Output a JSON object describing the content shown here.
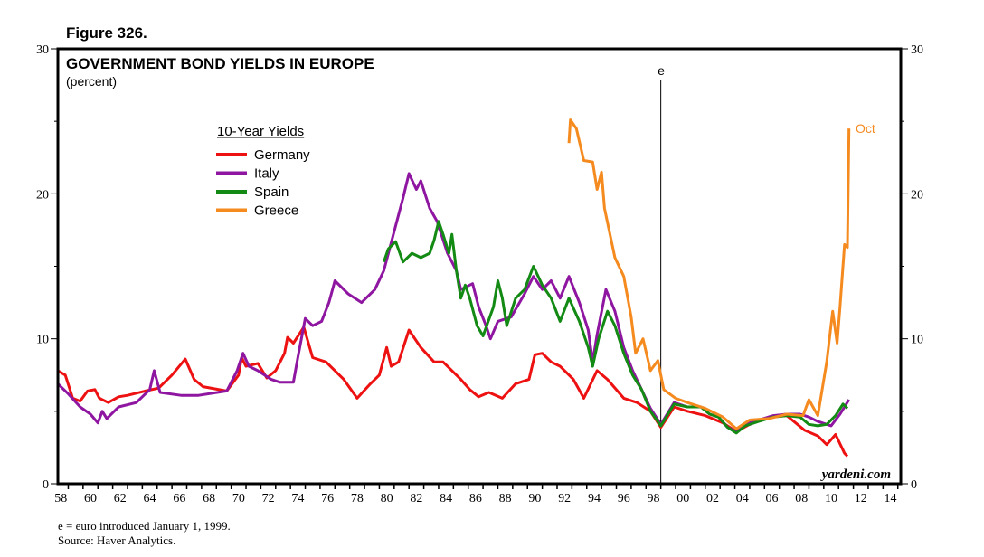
{
  "figure_label": "Figure 326.",
  "chart_data": {
    "type": "line",
    "title": "GOVERNMENT BOND YIELDS IN EUROPE",
    "subtitle": "(percent)",
    "legend_title": "10-Year Yields",
    "legend_placement": "top-left",
    "ylim": [
      0,
      30
    ],
    "yticks": [
      0,
      10,
      20,
      30
    ],
    "xlim": [
      1958.3,
      2015.2
    ],
    "xtick_labels": [
      "58",
      "60",
      "62",
      "64",
      "66",
      "68",
      "70",
      "72",
      "74",
      "76",
      "78",
      "80",
      "82",
      "84",
      "86",
      "88",
      "90",
      "92",
      "94",
      "96",
      "98",
      "00",
      "02",
      "04",
      "06",
      "08",
      "10",
      "12",
      "14"
    ],
    "xtick_years": [
      1958,
      1960,
      1962,
      1964,
      1966,
      1968,
      1970,
      1972,
      1974,
      1976,
      1978,
      1980,
      1982,
      1984,
      1986,
      1988,
      1990,
      1992,
      1994,
      1996,
      1998,
      2000,
      2002,
      2004,
      2006,
      2008,
      2010,
      2012,
      2014
    ],
    "grid": false,
    "annotations": {
      "euro_marker": {
        "label": "e",
        "year": 1999.0
      },
      "greece_end_label": "Oct",
      "watermark": "yardeni.com"
    },
    "series": [
      {
        "name": "Germany",
        "color": "#ee1111",
        "points": [
          [
            1958.3,
            7.8
          ],
          [
            1958.8,
            7.5
          ],
          [
            1959.3,
            5.9
          ],
          [
            1959.8,
            5.7
          ],
          [
            1960.3,
            6.4
          ],
          [
            1960.8,
            6.5
          ],
          [
            1961.1,
            5.9
          ],
          [
            1961.7,
            5.6
          ],
          [
            1962.4,
            6.0
          ],
          [
            1963.0,
            6.1
          ],
          [
            1964.2,
            6.4
          ],
          [
            1965.1,
            6.6
          ],
          [
            1966.0,
            7.5
          ],
          [
            1966.9,
            8.6
          ],
          [
            1967.5,
            7.2
          ],
          [
            1968.1,
            6.7
          ],
          [
            1969.7,
            6.4
          ],
          [
            1970.5,
            7.5
          ],
          [
            1970.7,
            8.7
          ],
          [
            1971.0,
            8.1
          ],
          [
            1971.8,
            8.3
          ],
          [
            1972.4,
            7.3
          ],
          [
            1973.0,
            7.8
          ],
          [
            1973.6,
            9.0
          ],
          [
            1973.8,
            10.1
          ],
          [
            1974.2,
            9.7
          ],
          [
            1974.9,
            10.8
          ],
          [
            1975.5,
            8.7
          ],
          [
            1976.4,
            8.4
          ],
          [
            1977.6,
            7.2
          ],
          [
            1978.5,
            5.9
          ],
          [
            1979.4,
            6.9
          ],
          [
            1980.0,
            7.5
          ],
          [
            1980.5,
            9.4
          ],
          [
            1980.8,
            8.1
          ],
          [
            1981.3,
            8.4
          ],
          [
            1982.0,
            10.6
          ],
          [
            1982.8,
            9.4
          ],
          [
            1983.7,
            8.4
          ],
          [
            1984.3,
            8.4
          ],
          [
            1984.9,
            7.8
          ],
          [
            1985.5,
            7.2
          ],
          [
            1986.1,
            6.5
          ],
          [
            1986.7,
            6.0
          ],
          [
            1987.4,
            6.3
          ],
          [
            1988.3,
            5.9
          ],
          [
            1989.2,
            6.9
          ],
          [
            1990.1,
            7.2
          ],
          [
            1990.5,
            8.9
          ],
          [
            1991.0,
            9.0
          ],
          [
            1991.6,
            8.4
          ],
          [
            1992.2,
            8.1
          ],
          [
            1993.1,
            7.2
          ],
          [
            1993.8,
            5.9
          ],
          [
            1994.7,
            7.8
          ],
          [
            1995.4,
            7.2
          ],
          [
            1996.5,
            5.9
          ],
          [
            1997.4,
            5.6
          ],
          [
            1998.3,
            5.0
          ],
          [
            1999.0,
            3.9
          ],
          [
            1999.9,
            5.3
          ],
          [
            2000.8,
            5.0
          ],
          [
            2002.0,
            4.7
          ],
          [
            2003.2,
            4.2
          ],
          [
            2004.1,
            3.6
          ],
          [
            2005.0,
            4.1
          ],
          [
            2006.3,
            4.6
          ],
          [
            2007.5,
            4.7
          ],
          [
            2008.7,
            3.7
          ],
          [
            2009.6,
            3.3
          ],
          [
            2010.2,
            2.7
          ],
          [
            2010.8,
            3.4
          ],
          [
            2011.4,
            2.1
          ],
          [
            2011.6,
            1.9
          ]
        ]
      },
      {
        "name": "Italy",
        "color": "#8e16a0",
        "points": [
          [
            1958.3,
            6.9
          ],
          [
            1959.0,
            6.2
          ],
          [
            1959.8,
            5.3
          ],
          [
            1960.5,
            4.8
          ],
          [
            1961.0,
            4.2
          ],
          [
            1961.3,
            5.0
          ],
          [
            1961.6,
            4.5
          ],
          [
            1962.4,
            5.3
          ],
          [
            1963.6,
            5.6
          ],
          [
            1964.5,
            6.5
          ],
          [
            1964.8,
            7.8
          ],
          [
            1965.2,
            6.3
          ],
          [
            1966.6,
            6.1
          ],
          [
            1967.8,
            6.1
          ],
          [
            1969.7,
            6.4
          ],
          [
            1970.4,
            7.8
          ],
          [
            1970.8,
            9.0
          ],
          [
            1971.2,
            8.1
          ],
          [
            1971.8,
            7.8
          ],
          [
            1972.7,
            7.2
          ],
          [
            1973.3,
            7.0
          ],
          [
            1974.2,
            7.0
          ],
          [
            1974.5,
            8.7
          ],
          [
            1975.0,
            11.4
          ],
          [
            1975.5,
            10.9
          ],
          [
            1976.1,
            11.2
          ],
          [
            1976.6,
            12.5
          ],
          [
            1977.0,
            14.0
          ],
          [
            1977.9,
            13.1
          ],
          [
            1978.8,
            12.5
          ],
          [
            1979.7,
            13.4
          ],
          [
            1980.3,
            14.7
          ],
          [
            1981.1,
            17.8
          ],
          [
            1981.6,
            19.7
          ],
          [
            1982.0,
            21.4
          ],
          [
            1982.5,
            20.3
          ],
          [
            1982.8,
            20.9
          ],
          [
            1983.4,
            19.0
          ],
          [
            1983.9,
            18.1
          ],
          [
            1984.6,
            15.9
          ],
          [
            1985.2,
            14.7
          ],
          [
            1985.5,
            13.4
          ],
          [
            1986.3,
            13.8
          ],
          [
            1986.7,
            12.2
          ],
          [
            1987.2,
            10.9
          ],
          [
            1987.5,
            10.0
          ],
          [
            1988.0,
            11.2
          ],
          [
            1988.9,
            11.5
          ],
          [
            1989.8,
            13.1
          ],
          [
            1990.4,
            14.3
          ],
          [
            1991.0,
            13.4
          ],
          [
            1991.6,
            14.0
          ],
          [
            1992.2,
            12.8
          ],
          [
            1992.8,
            14.3
          ],
          [
            1993.5,
            12.5
          ],
          [
            1994.1,
            10.6
          ],
          [
            1994.4,
            8.4
          ],
          [
            1994.7,
            10.3
          ],
          [
            1995.3,
            13.4
          ],
          [
            1995.9,
            11.9
          ],
          [
            1996.5,
            9.4
          ],
          [
            1997.1,
            7.8
          ],
          [
            1997.7,
            6.5
          ],
          [
            1998.3,
            5.2
          ],
          [
            1999.0,
            4.1
          ],
          [
            1999.9,
            5.6
          ],
          [
            2000.8,
            5.3
          ],
          [
            2001.7,
            5.3
          ],
          [
            2002.3,
            4.8
          ],
          [
            2002.9,
            4.6
          ],
          [
            2003.5,
            3.9
          ],
          [
            2004.1,
            3.6
          ],
          [
            2004.7,
            4.1
          ],
          [
            2005.6,
            4.4
          ],
          [
            2006.6,
            4.7
          ],
          [
            2007.5,
            4.8
          ],
          [
            2008.4,
            4.8
          ],
          [
            2009.0,
            4.6
          ],
          [
            2009.6,
            4.3
          ],
          [
            2010.5,
            4.0
          ],
          [
            2011.1,
            4.8
          ],
          [
            2011.4,
            5.3
          ],
          [
            2011.7,
            5.8
          ]
        ]
      },
      {
        "name": "Spain",
        "color": "#138a13",
        "points": [
          [
            1980.3,
            15.3
          ],
          [
            1980.6,
            16.2
          ],
          [
            1981.1,
            16.7
          ],
          [
            1981.6,
            15.3
          ],
          [
            1982.2,
            15.9
          ],
          [
            1982.8,
            15.6
          ],
          [
            1983.4,
            15.9
          ],
          [
            1983.7,
            16.8
          ],
          [
            1984.0,
            18.1
          ],
          [
            1984.3,
            17.2
          ],
          [
            1984.7,
            15.9
          ],
          [
            1984.9,
            17.2
          ],
          [
            1985.2,
            14.7
          ],
          [
            1985.5,
            12.8
          ],
          [
            1985.8,
            13.7
          ],
          [
            1986.1,
            12.8
          ],
          [
            1986.6,
            10.9
          ],
          [
            1987.0,
            10.2
          ],
          [
            1987.7,
            12.2
          ],
          [
            1988.0,
            14.0
          ],
          [
            1988.3,
            12.8
          ],
          [
            1988.6,
            10.9
          ],
          [
            1989.2,
            12.8
          ],
          [
            1989.8,
            13.4
          ],
          [
            1990.4,
            15.0
          ],
          [
            1991.0,
            13.7
          ],
          [
            1991.6,
            12.8
          ],
          [
            1992.2,
            11.2
          ],
          [
            1992.8,
            12.8
          ],
          [
            1993.5,
            11.2
          ],
          [
            1994.1,
            9.4
          ],
          [
            1994.4,
            8.1
          ],
          [
            1994.8,
            10.0
          ],
          [
            1995.4,
            11.9
          ],
          [
            1995.9,
            10.9
          ],
          [
            1996.5,
            9.0
          ],
          [
            1997.1,
            7.5
          ],
          [
            1997.7,
            6.5
          ],
          [
            1998.3,
            5.0
          ],
          [
            1999.0,
            4.0
          ],
          [
            1999.9,
            5.5
          ],
          [
            2000.8,
            5.3
          ],
          [
            2001.7,
            5.3
          ],
          [
            2002.3,
            4.8
          ],
          [
            2002.9,
            4.6
          ],
          [
            2003.5,
            3.9
          ],
          [
            2004.1,
            3.5
          ],
          [
            2004.7,
            4.0
          ],
          [
            2005.6,
            4.3
          ],
          [
            2006.6,
            4.6
          ],
          [
            2007.5,
            4.7
          ],
          [
            2008.4,
            4.6
          ],
          [
            2009.0,
            4.1
          ],
          [
            2009.6,
            4.0
          ],
          [
            2010.2,
            4.1
          ],
          [
            2010.8,
            4.7
          ],
          [
            2011.3,
            5.5
          ],
          [
            2011.6,
            5.2
          ]
        ]
      },
      {
        "name": "Greece",
        "color": "#f58a1f",
        "points": [
          [
            1992.8,
            23.5
          ],
          [
            1992.9,
            25.1
          ],
          [
            1993.3,
            24.5
          ],
          [
            1993.8,
            22.3
          ],
          [
            1994.4,
            22.2
          ],
          [
            1994.7,
            20.3
          ],
          [
            1995.0,
            21.5
          ],
          [
            1995.2,
            19.0
          ],
          [
            1995.9,
            15.6
          ],
          [
            1996.5,
            14.3
          ],
          [
            1997.0,
            11.5
          ],
          [
            1997.3,
            9.0
          ],
          [
            1997.8,
            10.0
          ],
          [
            1998.3,
            7.8
          ],
          [
            1998.8,
            8.5
          ],
          [
            1999.2,
            6.5
          ],
          [
            2000.0,
            5.9
          ],
          [
            2000.8,
            5.6
          ],
          [
            2002.0,
            5.2
          ],
          [
            2003.2,
            4.6
          ],
          [
            2004.1,
            3.8
          ],
          [
            2005.0,
            4.4
          ],
          [
            2006.3,
            4.5
          ],
          [
            2007.5,
            4.8
          ],
          [
            2008.6,
            4.7
          ],
          [
            2009.0,
            5.8
          ],
          [
            2009.6,
            4.7
          ],
          [
            2010.2,
            8.4
          ],
          [
            2010.6,
            11.9
          ],
          [
            2010.9,
            9.7
          ],
          [
            2011.1,
            12.2
          ],
          [
            2011.4,
            16.5
          ],
          [
            2011.6,
            16.3
          ],
          [
            2011.7,
            24.5
          ]
        ]
      }
    ]
  },
  "footnotes": [
    "e = euro introduced January 1, 1999.",
    "Source: Haver Analytics."
  ]
}
